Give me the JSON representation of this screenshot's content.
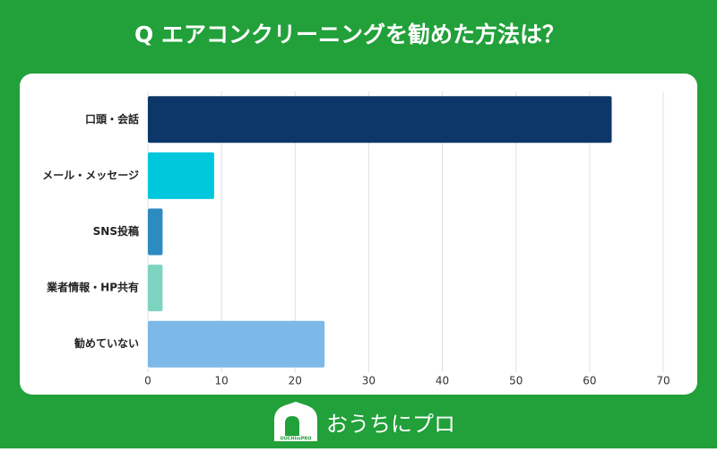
{
  "chart_data": {
    "type": "bar",
    "orientation": "horizontal",
    "title": "Q エアコンクリーニングを勧めた方法は？",
    "categories": [
      "口頭・会話",
      "メール・メッセージ",
      "SNS投稿",
      "業者情報・HP共有",
      "勧めていない"
    ],
    "values": [
      63,
      9,
      2,
      2,
      24
    ],
    "colors": [
      "#0d3768",
      "#00c8dc",
      "#2e8bc0",
      "#7fd4c1",
      "#7db9e8"
    ],
    "xlim": [
      0,
      70
    ],
    "xticks": [
      0,
      10,
      20,
      30,
      40,
      50,
      60,
      70
    ],
    "grid": true
  },
  "brand": "おうちにプロ",
  "brand_mark": "OUCHIniPRO"
}
